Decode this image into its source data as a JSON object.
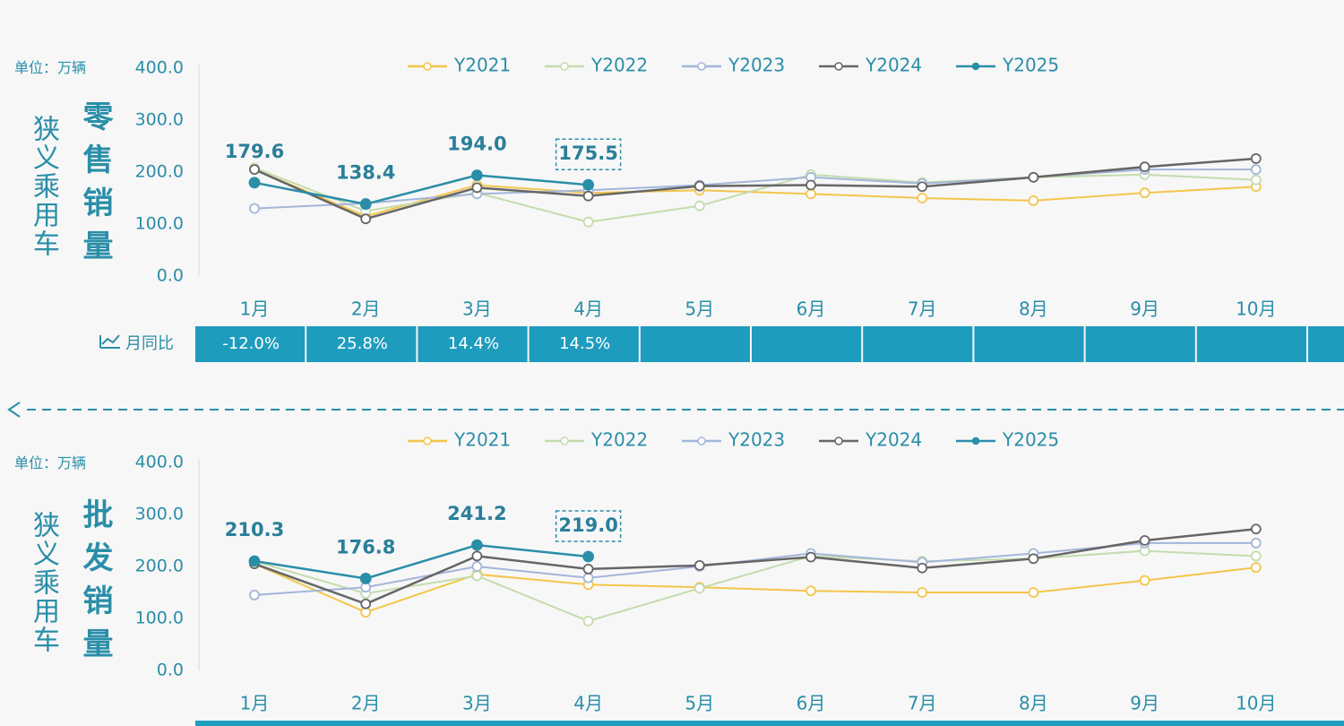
{
  "chart_data": [
    {
      "type": "line",
      "unit": "单位：万辆",
      "side_title": "狭义乘用车",
      "title": "零售销量",
      "categories": [
        "1月",
        "2月",
        "3月",
        "4月",
        "5月",
        "6月",
        "7月",
        "8月",
        "9月",
        "10月"
      ],
      "ylim": [
        0,
        400
      ],
      "yticks": [
        {
          "value": 0,
          "label": "0.0"
        },
        {
          "value": 100,
          "label": "100.0"
        },
        {
          "value": 200,
          "label": "200.0"
        },
        {
          "value": 300,
          "label": "300.0"
        },
        {
          "value": 400,
          "label": "400.0"
        }
      ],
      "grid": false,
      "legend": "top",
      "series": [
        {
          "name": "Y2021",
          "color": "#f3c54a",
          "values": [
            205,
            115,
            175,
            160,
            165,
            158,
            150,
            145,
            160,
            172
          ]
        },
        {
          "name": "Y2022",
          "color": "#c4dcad",
          "values": [
            208,
            125,
            160,
            104,
            135,
            195,
            180,
            190,
            195,
            185
          ]
        },
        {
          "name": "Y2023",
          "color": "#a3b6da",
          "values": [
            130,
            140,
            158,
            165,
            175,
            190,
            178,
            190,
            205,
            205
          ]
        },
        {
          "name": "Y2024",
          "color": "#666666",
          "values": [
            205,
            110,
            170,
            154,
            173,
            175,
            172,
            190,
            210,
            226
          ]
        },
        {
          "name": "Y2025",
          "color": "#2a8ea8",
          "values": [
            179.6,
            138.4,
            194.0,
            175.5,
            null,
            null,
            null,
            null,
            null,
            null
          ],
          "value_labels": [
            "179.6",
            "138.4",
            "194.0",
            "175.5"
          ]
        }
      ],
      "yoy_label": "月同比",
      "yoy": [
        "-12.0%",
        "25.8%",
        "14.4%",
        "14.5%"
      ]
    },
    {
      "type": "line",
      "unit": "单位：万辆",
      "side_title": "狭义乘用车",
      "title": "批发销量",
      "categories": [
        "1月",
        "2月",
        "3月",
        "4月",
        "5月",
        "6月",
        "7月",
        "8月",
        "9月",
        "10月"
      ],
      "ylim": [
        0,
        400
      ],
      "yticks": [
        {
          "value": 0,
          "label": "0.0"
        },
        {
          "value": 100,
          "label": "100.0"
        },
        {
          "value": 200,
          "label": "200.0"
        },
        {
          "value": 300,
          "label": "300.0"
        },
        {
          "value": 400,
          "label": "400.0"
        }
      ],
      "grid": false,
      "legend": "top",
      "series": [
        {
          "name": "Y2021",
          "color": "#f3c54a",
          "values": [
            205,
            112,
            185,
            165,
            160,
            153,
            150,
            150,
            173,
            198
          ]
        },
        {
          "name": "Y2022",
          "color": "#c4dcad",
          "values": [
            210,
            148,
            182,
            95,
            158,
            220,
            210,
            215,
            230,
            220
          ]
        },
        {
          "name": "Y2023",
          "color": "#a3b6da",
          "values": [
            145,
            160,
            200,
            178,
            200,
            225,
            208,
            225,
            245,
            245
          ]
        },
        {
          "name": "Y2024",
          "color": "#666666",
          "values": [
            205,
            128,
            220,
            195,
            202,
            218,
            197,
            215,
            250,
            272
          ]
        },
        {
          "name": "Y2025",
          "color": "#2a8ea8",
          "values": [
            210.3,
            176.8,
            241.2,
            219.0,
            null,
            null,
            null,
            null,
            null,
            null
          ],
          "value_labels": [
            "210.3",
            "176.8",
            "241.2",
            "219.0"
          ]
        }
      ]
    }
  ]
}
